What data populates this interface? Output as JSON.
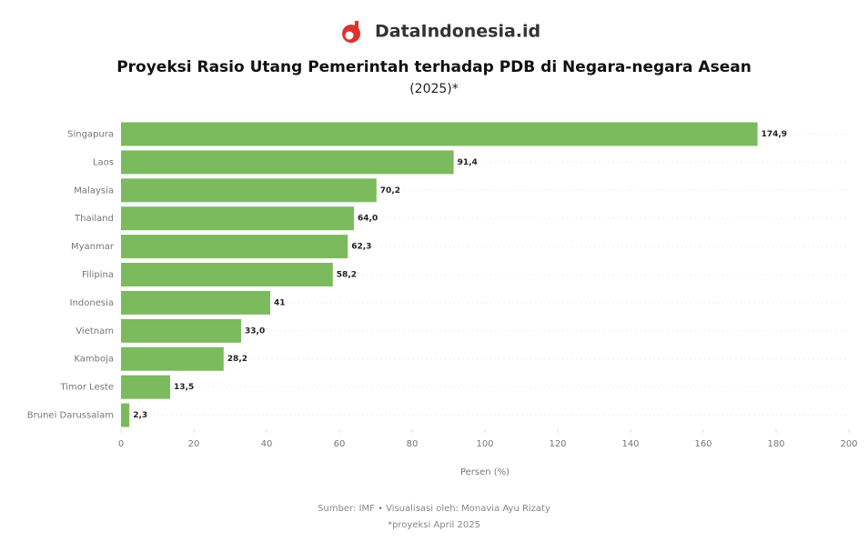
{
  "brand": "DataIndonesia.id",
  "chart_data": {
    "type": "hbar",
    "title": "Proyeksi Rasio Utang Pemerintah terhadap PDB di Negara-negara Asean",
    "subtitle": "(2025)*",
    "x_label": "Persen (%)",
    "categories": [
      "Singapura",
      "Laos",
      "Malaysia",
      "Thailand",
      "Myanmar",
      "Filipina",
      "Indonesia",
      "Vietnam",
      "Kamboja",
      "Timor Leste",
      "Brunei Darussalam"
    ],
    "values": [
      174.9,
      91.4,
      70.2,
      64.0,
      62.3,
      58.2,
      41,
      33.0,
      28.2,
      13.5,
      2.3
    ],
    "value_labels": [
      "174,9",
      "91,4",
      "70,2",
      "64,0",
      "62,3",
      "58,2",
      "41",
      "33,0",
      "28,2",
      "13,5",
      "2,3"
    ],
    "color": "#7cba5e",
    "xlim": [
      0,
      200
    ],
    "xticks": [
      0,
      20,
      40,
      60,
      80,
      100,
      120,
      140,
      160,
      180,
      200
    ],
    "source": "Sumber: IMF • Visualisasi oleh: Monavia Ayu Rizaty",
    "note": "*proyeksi April 2025"
  }
}
